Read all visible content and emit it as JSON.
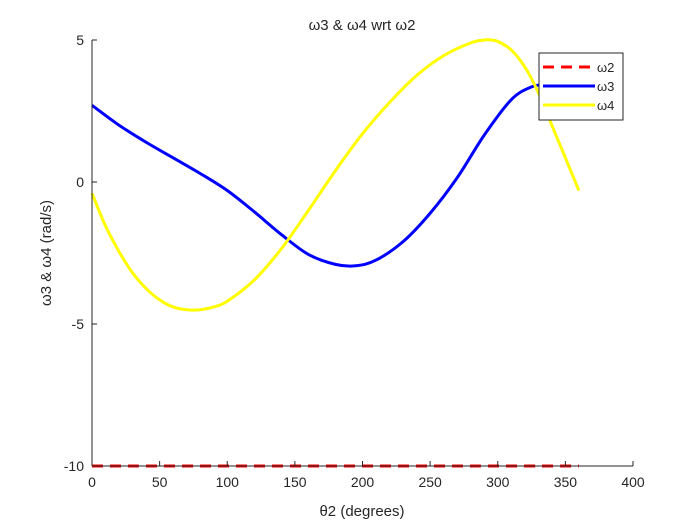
{
  "chart_data": {
    "type": "line",
    "title": "ω3 & ω4 wrt ω2",
    "xlabel": "θ2 (degrees)",
    "ylabel": "ω3 & ω4 (rad/s)",
    "xlim": [
      0,
      400
    ],
    "ylim": [
      -10,
      5
    ],
    "xticks": [
      0,
      50,
      100,
      150,
      200,
      250,
      300,
      350,
      400
    ],
    "yticks": [
      -10,
      -5,
      0,
      5
    ],
    "grid": false,
    "legend_placement": "top-right",
    "series": [
      {
        "name": "ω2",
        "color": "#ff0000",
        "style": "dashed",
        "x": [
          0,
          90,
          180,
          270,
          360
        ],
        "y": [
          -10,
          -10,
          -10,
          -10,
          -10
        ]
      },
      {
        "name": "ω3",
        "color": "#0000ff",
        "style": "solid",
        "x": [
          0,
          20,
          40,
          60,
          80,
          100,
          120,
          140,
          160,
          180,
          195,
          210,
          230,
          250,
          270,
          290,
          310,
          325,
          335,
          345,
          360
        ],
        "y": [
          2.7,
          2.0,
          1.4,
          0.85,
          0.3,
          -0.3,
          -1.05,
          -1.85,
          -2.55,
          -2.9,
          -2.95,
          -2.75,
          -2.1,
          -1.1,
          0.15,
          1.65,
          2.9,
          3.35,
          3.4,
          3.25,
          2.8
        ]
      },
      {
        "name": "ω4",
        "color": "#ffff00",
        "style": "solid",
        "x": [
          0,
          10,
          20,
          30,
          40,
          50,
          60,
          70,
          80,
          90,
          100,
          120,
          140,
          160,
          180,
          200,
          220,
          240,
          260,
          280,
          290,
          295,
          300,
          310,
          320,
          330,
          340,
          350,
          360
        ],
        "y": [
          -0.4,
          -1.55,
          -2.45,
          -3.2,
          -3.75,
          -4.15,
          -4.4,
          -4.5,
          -4.5,
          -4.4,
          -4.2,
          -3.45,
          -2.35,
          -1.0,
          0.4,
          1.7,
          2.8,
          3.75,
          4.45,
          4.9,
          5.0,
          5.0,
          4.95,
          4.65,
          4.05,
          3.15,
          2.0,
          0.85,
          -0.3
        ]
      }
    ]
  }
}
